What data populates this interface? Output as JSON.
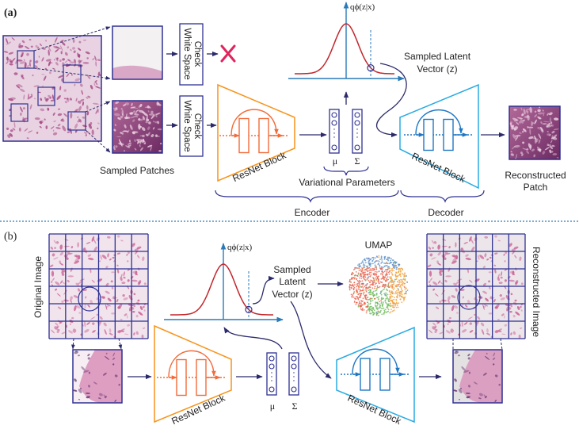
{
  "panel_a": {
    "label": "(a)",
    "white_space_check": "White Space Check",
    "white_space_check_line1": "White Space",
    "white_space_check_line2": "Check",
    "sampled_patches": "Sampled Patches",
    "encoder_block": "ResNet Block",
    "decoder_block": "ResNet Block",
    "mu": "μ",
    "sigma": "Σ",
    "variational_parameters": "Variational Parameters",
    "distribution_label": "qϕ(z|x)",
    "sampled_latent_line1": "Sampled Latent",
    "sampled_latent_line2": "Vector (z)",
    "reconstructed_line1": "Reconstructed",
    "reconstructed_line2": "Patch",
    "encoder": "Encoder",
    "decoder": "Decoder",
    "reject_icon": "red-x"
  },
  "panel_b": {
    "label": "(b)",
    "original_image": "Original Image",
    "reconstructed_image": "Reconstructed Image",
    "distribution_label": "qϕ(z|x)",
    "sampled_line1": "Sampled",
    "sampled_line2": "Latent",
    "sampled_line3": "Vector (z)",
    "umap": "UMAP",
    "encoder_block": "ResNet Block",
    "decoder_block": "ResNet Block",
    "mu": "μ",
    "sigma": "Σ"
  },
  "colors": {
    "encoder": "#f7941d",
    "encoder_inner": "#f26b3a",
    "decoder": "#29abe2",
    "decoder_inner": "#1f77c4",
    "arrows": "#2b2a6b",
    "gaussian": "#c1272d",
    "axis": "#2a7ab8",
    "frame": "#2e3192",
    "reject": "#e0245e",
    "umap": [
      "#5b8fc9",
      "#e8604c",
      "#6dbb5a",
      "#f2a13b"
    ]
  }
}
